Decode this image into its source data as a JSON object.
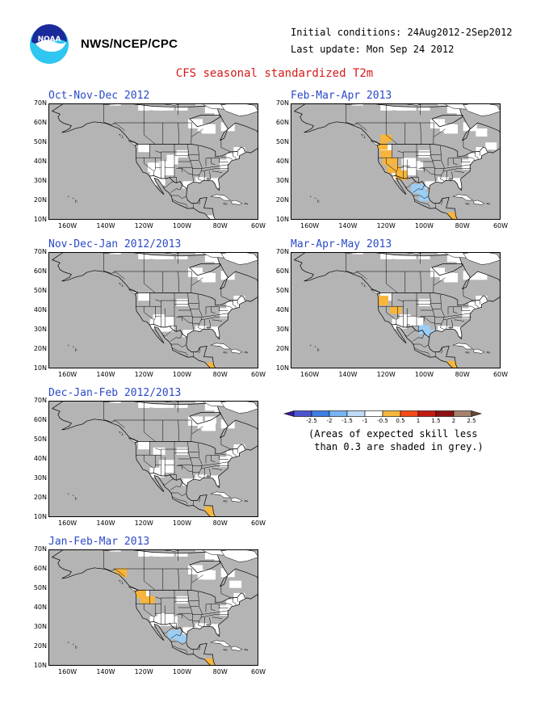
{
  "header": {
    "org": "NWS/NCEP/CPC",
    "initial_conditions": "Initial conditions: 24Aug2012-2Sep2012",
    "last_update": "Last update: Mon Sep 24 2012",
    "title": "CFS seasonal standardized T2m"
  },
  "axes": {
    "lat_labels": [
      "70N",
      "60N",
      "50N",
      "40N",
      "30N",
      "20N",
      "10N"
    ],
    "lon_labels": [
      "160W",
      "140W",
      "120W",
      "100W",
      "80W",
      "60W"
    ]
  },
  "panels": [
    {
      "title": "Oct-Nov-Dec 2012",
      "orange": [],
      "blue": [],
      "white_extra": [
        [
          -115,
          37
        ],
        [
          -108,
          38
        ],
        [
          -105,
          41
        ],
        [
          -112,
          30
        ]
      ]
    },
    {
      "title": "Feb-Mar-Apr 2013",
      "orange": [
        [
          -123,
          48
        ],
        [
          -120,
          44
        ],
        [
          -118,
          40
        ],
        [
          -116,
          36
        ],
        [
          -112,
          33
        ],
        [
          -120,
          52
        ],
        [
          -85,
          12
        ]
      ],
      "blue": [
        [
          -103,
          26
        ],
        [
          -100,
          22
        ]
      ],
      "white_extra": [
        [
          -108,
          40
        ],
        [
          -104,
          38
        ],
        [
          -70,
          55
        ],
        [
          -65,
          48
        ]
      ]
    },
    {
      "title": "Nov-Dec-Jan 2012/2013",
      "orange": [
        [
          -83,
          11
        ]
      ],
      "blue": [],
      "white_extra": [
        [
          -108,
          31
        ],
        [
          -112,
          36
        ]
      ]
    },
    {
      "title": "Mar-Apr-May 2013",
      "orange": [
        [
          -122,
          45
        ],
        [
          -115,
          40
        ],
        [
          -85,
          12
        ]
      ],
      "blue": [
        [
          -100,
          30
        ],
        [
          -96,
          28
        ]
      ],
      "white_extra": [
        [
          -110,
          36
        ],
        [
          -104,
          34
        ],
        [
          -92,
          26
        ],
        [
          -70,
          58
        ]
      ]
    },
    {
      "title": "Dec-Jan-Feb 2012/2013",
      "orange": [
        [
          -85,
          13
        ],
        [
          -80,
          10
        ]
      ],
      "blue": [],
      "white_extra": [
        [
          -108,
          37
        ],
        [
          -112,
          44
        ],
        [
          -75,
          62
        ],
        [
          -85,
          60
        ]
      ]
    },
    {
      "title": "Jan-Feb-Mar 2013",
      "orange": [
        [
          -122,
          47
        ],
        [
          -118,
          44
        ],
        [
          -132,
          58
        ],
        [
          -85,
          12
        ]
      ],
      "blue": [
        [
          -104,
          26
        ],
        [
          -100,
          24
        ]
      ],
      "white_extra": [
        [
          -110,
          35
        ],
        [
          -106,
          33
        ],
        [
          -72,
          52
        ],
        [
          -88,
          57
        ]
      ]
    }
  ],
  "colorbar": {
    "labels": [
      "-2.5",
      "-2",
      "-1.5",
      "-1",
      "-0.5",
      "0.5",
      "1",
      "1.5",
      "2",
      "2.5"
    ],
    "colors": [
      "#3a1ba0",
      "#4b55d2",
      "#3d7fe3",
      "#78b4f2",
      "#bcdcf8",
      "#ffffff",
      "#f8b53c",
      "#f54a18",
      "#c41c12",
      "#8c1010",
      "#a5826e",
      "#6a4a38"
    ],
    "note": "(Areas of expected skill less\n than 0.3 are shaded in grey.)"
  },
  "colors": {
    "grey": "#b4b4b4",
    "land_white": "#ffffff",
    "orange": "#f8b53c",
    "light_blue": "#9ccef4"
  }
}
